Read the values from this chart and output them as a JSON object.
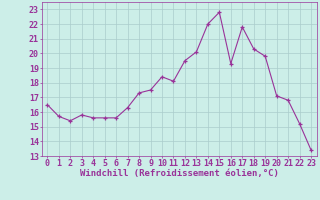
{
  "x": [
    0,
    1,
    2,
    3,
    4,
    5,
    6,
    7,
    8,
    9,
    10,
    11,
    12,
    13,
    14,
    15,
    16,
    17,
    18,
    19,
    20,
    21,
    22,
    23
  ],
  "y": [
    16.5,
    15.7,
    15.4,
    15.8,
    15.6,
    15.6,
    15.6,
    16.3,
    17.3,
    17.5,
    18.4,
    18.1,
    19.5,
    20.1,
    22.0,
    22.8,
    19.3,
    21.8,
    20.3,
    19.8,
    17.1,
    16.8,
    15.2,
    13.4
  ],
  "line_color": "#993399",
  "marker": "+",
  "bg_color": "#cceee8",
  "grid_color": "#aacccc",
  "xlabel": "Windchill (Refroidissement éolien,°C)",
  "ylabel_ticks": [
    13,
    14,
    15,
    16,
    17,
    18,
    19,
    20,
    21,
    22,
    23
  ],
  "xlim": [
    -0.5,
    23.5
  ],
  "ylim": [
    13,
    23.5
  ],
  "xlabel_fontsize": 6.5,
  "tick_fontsize": 6.0
}
